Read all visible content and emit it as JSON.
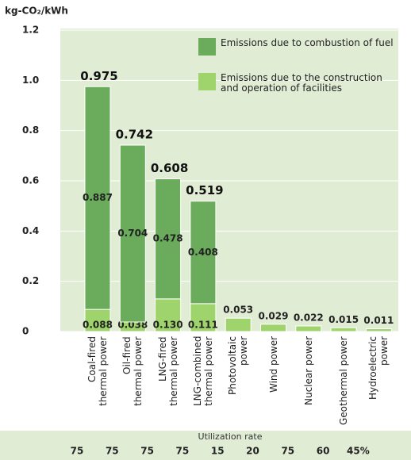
{
  "chart_data": {
    "type": "stacked-bar",
    "y_label": "kg-CO₂/kWh",
    "categories": [
      "Coal-fired\nthermal power",
      "Oil-fired\nthermal power",
      "LNG-fired\nthermal power",
      "LNG-combined\nthermal power",
      "Photovoltaic power",
      "Wind power",
      "Nuclear power",
      "Geothermal power",
      "Hydroelectric power"
    ],
    "series": [
      {
        "name": "Emissions due to the construction\nand operation of facilities",
        "color": "#9fd46c",
        "values": [
          0.088,
          0.038,
          0.13,
          0.111,
          0.053,
          0.029,
          0.022,
          0.015,
          0.011
        ],
        "value_labels": [
          "0.088",
          "0.038",
          "0.130",
          "0.111",
          "0.053",
          "0.029",
          "0.022",
          "0.015",
          "0.011"
        ]
      },
      {
        "name": "Emissions due to combustion of fuel",
        "color": "#6aab5c",
        "values": [
          0.887,
          0.704,
          0.478,
          0.408,
          null,
          null,
          null,
          null,
          null
        ]
      }
    ],
    "totals": [
      0.975,
      0.742,
      0.608,
      0.519,
      null,
      null,
      null,
      null,
      null
    ],
    "ylim": [
      0,
      1.2
    ],
    "yticks": [
      0,
      0.2,
      0.4,
      0.6,
      0.8,
      {
        "value": 1,
        "label": "1.0"
      },
      1.2
    ],
    "grid": true,
    "utilization": {
      "label": "Utilization rate",
      "values": [
        75,
        75,
        75,
        75,
        15,
        20,
        75,
        60,
        45
      ],
      "value_labels": [
        "75",
        "75",
        "75",
        "75",
        "15",
        "20",
        "75",
        "60",
        "45%"
      ]
    }
  }
}
